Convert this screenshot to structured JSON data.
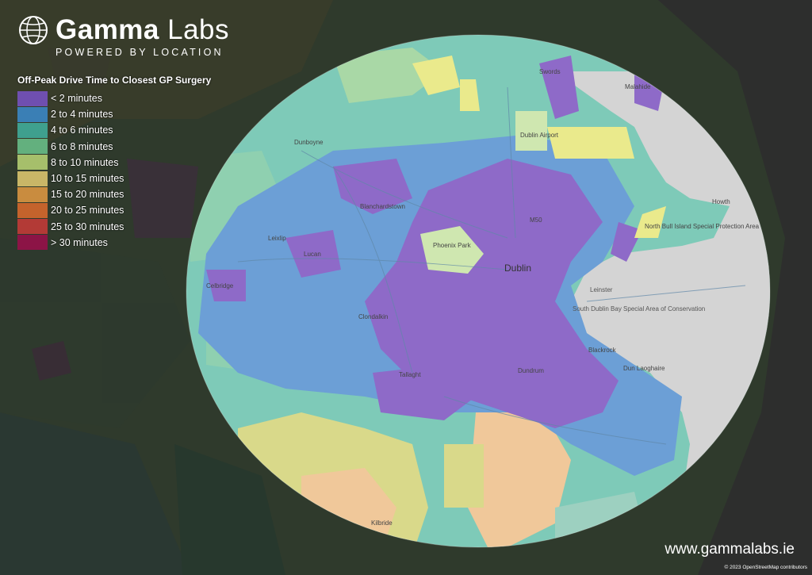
{
  "brand": {
    "name_bold": "Gamma",
    "name_light": " Labs",
    "tagline": "POWERED BY LOCATION",
    "logo_icon": "globe-icon"
  },
  "legend": {
    "title": "Off-Peak Drive Time to Closest GP Surgery",
    "items": [
      {
        "label": "< 2 minutes",
        "color": "#6f4fb0"
      },
      {
        "label": "2 to 4 minutes",
        "color": "#3a7fb5"
      },
      {
        "label": "4 to 6 minutes",
        "color": "#3fa08e"
      },
      {
        "label": "6 to 8 minutes",
        "color": "#63b07e"
      },
      {
        "label": "8 to 10 minutes",
        "color": "#a6bf6b"
      },
      {
        "label": "10 to 15 minutes",
        "color": "#c9b667"
      },
      {
        "label": "15 to 20 minutes",
        "color": "#c98c3f"
      },
      {
        "label": "20 to 25 minutes",
        "color": "#c4632c"
      },
      {
        "label": "25 to 30 minutes",
        "color": "#b33a36"
      },
      {
        "label": "> 30 minutes",
        "color": "#8c1446"
      }
    ]
  },
  "places": {
    "swords": "Swords",
    "malahide": "Malahide",
    "dublin_airport": "Dublin Airport",
    "dunboyne": "Dunboyne",
    "blanchardstown": "Blanchardstown",
    "howth": "Howth",
    "north_bull_island": "North Bull Island Special Protection Area",
    "leixlip": "Leixlip",
    "lucan": "Lucan",
    "phoenix_park": "Phoenix Park",
    "dublin": "Dublin",
    "celbridge": "Celbridge",
    "leinster": "Leinster",
    "south_dublin_bay": "South Dublin Bay Special Area of Conservation",
    "clondalkin": "Clondalkin",
    "blackrock": "Blackrock",
    "dun_laoghaire": "Dun Laoghaire",
    "tallaght": "Tallaght",
    "dundrum": "Dundrum",
    "kilbride": "Kilbride",
    "m50": "M50"
  },
  "footer": {
    "website": "www.gammalabs.ie",
    "attribution": "© 2023 OpenStreetMap contributors"
  }
}
